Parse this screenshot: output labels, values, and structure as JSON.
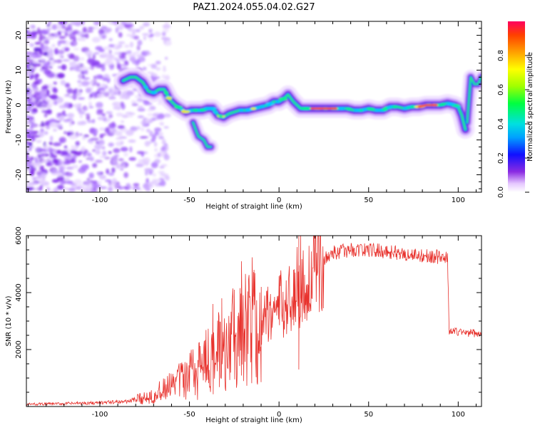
{
  "title": "PAZ1.2024.055.04.02.G27",
  "colors": {
    "snr_line": "#e8332e",
    "track_core": "#ff2a1a",
    "noise": "#7b1fe8"
  },
  "chart_data": [
    {
      "type": "heatmap",
      "name": "spectrogram",
      "xlabel": "Height of straight line (km)",
      "ylabel": "Frequency (Hz)",
      "xlim": [
        -141,
        113
      ],
      "ylim": [
        -25,
        24
      ],
      "xticks": [
        -100,
        -50,
        0,
        50,
        100
      ],
      "yticks": [
        -20,
        -10,
        0,
        10,
        20
      ],
      "colorbar": {
        "label": "Normalized spectral amplitude",
        "range": [
          0,
          1
        ],
        "ticks": [
          0.0,
          0.2,
          0.4,
          0.6,
          0.8
        ],
        "colormap": "rainbow-white"
      },
      "noise_region": {
        "x": [
          -141,
          -72
        ],
        "y": [
          -25,
          24
        ]
      },
      "ridge": {
        "x": [
          -87,
          -83,
          -80,
          -76,
          -73,
          -70,
          -67,
          -64,
          -61,
          -58,
          -55,
          -52,
          -49,
          -46,
          -43,
          -40,
          -37,
          -34,
          -31,
          -28,
          -25,
          -22,
          -18,
          -14,
          -10,
          -6,
          -3,
          0,
          3,
          5,
          8,
          12,
          18,
          25,
          32,
          38,
          42,
          46,
          50,
          54,
          58,
          62,
          66,
          70,
          74,
          78,
          82,
          86,
          90,
          94,
          98,
          100,
          102,
          104
        ],
        "y": [
          7,
          8,
          8,
          6.5,
          4,
          3.5,
          4.5,
          4.5,
          1.5,
          0,
          -1,
          -2,
          -1.5,
          -1.5,
          -1.5,
          -1,
          -1,
          -3,
          -3.5,
          -2.5,
          -2,
          -1.5,
          -1.5,
          -1,
          -0.5,
          0,
          1,
          1,
          2,
          3,
          1,
          -1,
          -1,
          -1,
          -1,
          -1,
          -1.5,
          -1.5,
          -1,
          -1.5,
          -1.5,
          -0.5,
          -0.5,
          -1,
          -0.5,
          -0.5,
          0,
          0,
          0,
          0.5,
          0,
          -0.5,
          -3,
          -7
        ]
      },
      "branches": [
        {
          "x": [
            -48,
            -45,
            -42,
            -40,
            -38
          ],
          "y": [
            -5,
            -9,
            -10,
            -12,
            -12
          ]
        },
        {
          "x": [
            105,
            107,
            109,
            111,
            113
          ],
          "y": [
            -5,
            8,
            6,
            6,
            8
          ]
        }
      ]
    },
    {
      "type": "line",
      "name": "snr",
      "xlabel": "Height of straight line (km)",
      "ylabel": "SNR (10 * v/v)",
      "xlim": [
        -141,
        113
      ],
      "ylim": [
        0,
        6000
      ],
      "xticks": [
        -100,
        -50,
        0,
        50,
        100
      ],
      "yticks": [
        2000,
        4000,
        6000
      ],
      "envelope": {
        "x": [
          -141,
          -120,
          -100,
          -85,
          -75,
          -65,
          -55,
          -48,
          -42,
          -36,
          -30,
          -25,
          -20,
          -15,
          -10,
          -5,
          0,
          4,
          8,
          12,
          15,
          18,
          22,
          26,
          30,
          40,
          50,
          60,
          70,
          80,
          90,
          94,
          95,
          100,
          113
        ],
        "y": [
          80,
          100,
          130,
          180,
          300,
          550,
          900,
          1200,
          1600,
          1800,
          2200,
          2500,
          2800,
          3000,
          3200,
          3300,
          3500,
          3700,
          3900,
          4100,
          4300,
          4600,
          4900,
          5200,
          5400,
          5500,
          5500,
          5450,
          5350,
          5300,
          5250,
          5200,
          2650,
          2620,
          2550
        ]
      },
      "spikes": [
        {
          "x": -37,
          "y": 3600
        },
        {
          "x": -32,
          "y": 3800
        },
        {
          "x": -25,
          "y": 4100
        },
        {
          "x": -21,
          "y": 5100
        },
        {
          "x": -14,
          "y": 4800
        },
        {
          "x": -10,
          "y": 4200
        },
        {
          "x": 8,
          "y": 4800
        },
        {
          "x": 10,
          "y": 5600
        },
        {
          "x": 11,
          "y": 6000
        },
        {
          "x": 12,
          "y": 6000
        },
        {
          "x": 11,
          "y": 1300
        }
      ]
    }
  ]
}
